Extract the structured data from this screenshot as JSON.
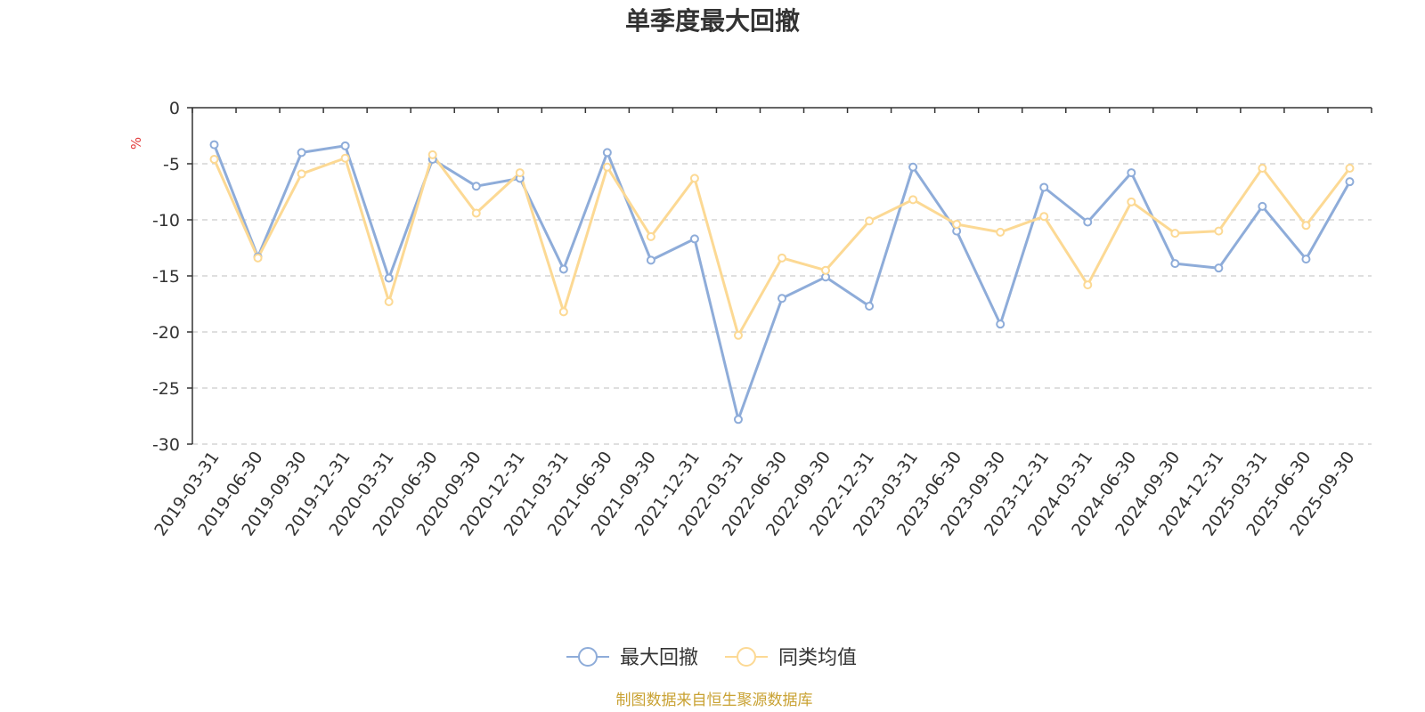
{
  "colors": {
    "series1": "#8eacd9",
    "series2": "#fcd994",
    "axis": "#333333",
    "grid": "#cccccc",
    "unit": "#e23b3b",
    "source": "#c9a233"
  },
  "chart_data": {
    "type": "line",
    "title": "单季度最大回撤",
    "ylabel": "%",
    "ylim": [
      -30,
      0
    ],
    "yticks": [
      0,
      -5,
      -10,
      -15,
      -20,
      -25,
      -30
    ],
    "grid": "horizontal-dashed",
    "legend_position": "bottom-center",
    "categories": [
      "2019-03-31",
      "2019-06-30",
      "2019-09-30",
      "2019-12-31",
      "2020-03-31",
      "2020-06-30",
      "2020-09-30",
      "2020-12-31",
      "2021-03-31",
      "2021-06-30",
      "2021-09-30",
      "2021-12-31",
      "2022-03-31",
      "2022-06-30",
      "2022-09-30",
      "2022-12-31",
      "2023-03-31",
      "2023-06-30",
      "2023-09-30",
      "2023-12-31",
      "2024-03-31",
      "2024-06-30",
      "2024-09-30",
      "2024-12-31",
      "2025-03-31",
      "2025-06-30",
      "2025-09-30"
    ],
    "series": [
      {
        "name": "最大回撤",
        "values": [
          -3.3,
          -13.3,
          -4.0,
          -3.4,
          -15.2,
          -4.6,
          -7.0,
          -6.3,
          -14.4,
          -4.0,
          -13.6,
          -11.7,
          -27.8,
          -17.0,
          -15.1,
          -17.7,
          -5.3,
          -11.0,
          -19.3,
          -7.1,
          -10.2,
          -5.8,
          -13.9,
          -14.3,
          -8.8,
          -13.5,
          -6.6
        ]
      },
      {
        "name": "同类均值",
        "values": [
          -4.6,
          -13.4,
          -5.9,
          -4.5,
          -17.3,
          -4.2,
          -9.4,
          -5.8,
          -18.2,
          -5.3,
          -11.5,
          -6.3,
          -20.3,
          -13.4,
          -14.5,
          -10.1,
          -8.2,
          -10.4,
          -11.1,
          -9.7,
          -15.8,
          -8.4,
          -11.2,
          -11.0,
          -5.4,
          -10.5,
          -5.4
        ]
      }
    ]
  },
  "source_text": "制图数据来自恒生聚源数据库"
}
